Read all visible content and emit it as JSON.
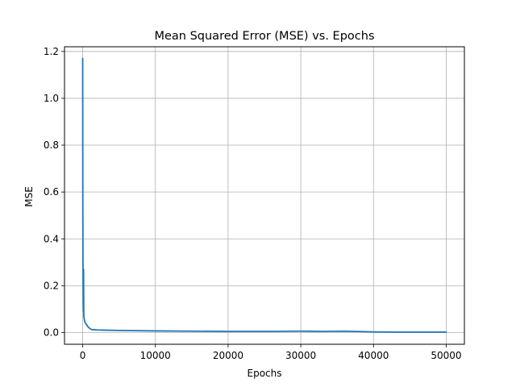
{
  "chart_data": {
    "type": "line",
    "title": "Mean Squared Error (MSE) vs. Epochs",
    "xlabel": "Epochs",
    "ylabel": "MSE",
    "xlim": [
      -2500,
      52500
    ],
    "ylim": [
      -0.05,
      1.22
    ],
    "xticks": [
      0,
      10000,
      20000,
      30000,
      40000,
      50000
    ],
    "xtick_labels": [
      "0",
      "10000",
      "20000",
      "30000",
      "40000",
      "50000"
    ],
    "yticks": [
      0.0,
      0.2,
      0.4,
      0.6,
      0.8,
      1.0,
      1.2
    ],
    "ytick_labels": [
      "0.0",
      "0.2",
      "0.4",
      "0.6",
      "0.8",
      "1.0",
      "1.2"
    ],
    "grid": true,
    "colors": {
      "line": "#1f77b4",
      "grid": "#b0b0b0",
      "axes": "#000000"
    },
    "series": [
      {
        "x": [
          0,
          20,
          40,
          60,
          80,
          100,
          120,
          150,
          200,
          300,
          500,
          800,
          1200,
          2000,
          5000,
          10000,
          20000,
          26000,
          30000,
          33000,
          36000,
          40000,
          43000,
          46000,
          50000
        ],
        "y": [
          1.17,
          0.55,
          0.3,
          0.2,
          0.12,
          0.09,
          0.27,
          0.075,
          0.06,
          0.045,
          0.035,
          0.022,
          0.013,
          0.011,
          0.009,
          0.007,
          0.005,
          0.005,
          0.006,
          0.005,
          0.006,
          0.003,
          0.002,
          0.002,
          0.002
        ]
      }
    ]
  }
}
